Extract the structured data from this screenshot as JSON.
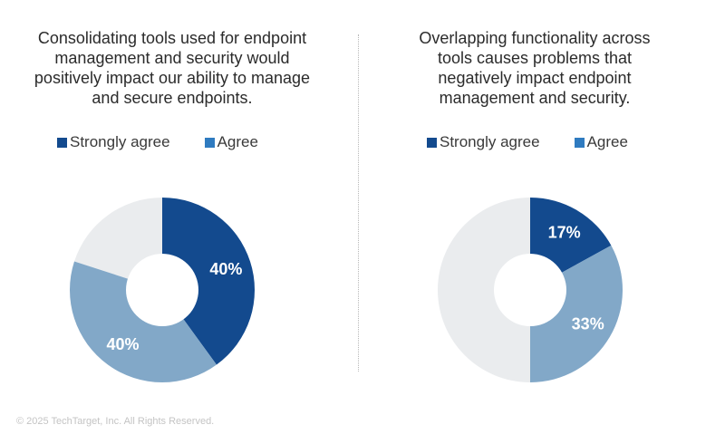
{
  "colors": {
    "strongly_agree": "#134a8e",
    "agree": "#82a8c8",
    "remainder": "#eaecee",
    "legend_agree": "#2f7bc0"
  },
  "legend": {
    "strongly_agree": "Strongly agree",
    "agree": "Agree"
  },
  "chart_data": [
    {
      "type": "pie",
      "title": "Consolidating tools used for endpoint management and security would positively impact our ability to manage and secure endpoints.",
      "title_lines": [
        "Consolidating tools used for endpoint",
        "management and security would",
        "positively impact our ability to manage",
        "and secure endpoints."
      ],
      "categories": [
        "Strongly agree",
        "Agree"
      ],
      "values": [
        40,
        40
      ],
      "labels": [
        "40%",
        "40%"
      ],
      "unit": "%",
      "legend_position": "top"
    },
    {
      "type": "pie",
      "title": "Overlapping functionality across tools causes problems that negatively impact endpoint management and security.",
      "title_lines": [
        "Overlapping functionality across",
        "tools causes problems that",
        "negatively impact endpoint",
        "management and security."
      ],
      "categories": [
        "Strongly agree",
        "Agree"
      ],
      "values": [
        17,
        33
      ],
      "labels": [
        "17%",
        "33%"
      ],
      "unit": "%",
      "legend_position": "top"
    }
  ],
  "footer": "© 2025 TechTarget, Inc. All Rights Reserved."
}
